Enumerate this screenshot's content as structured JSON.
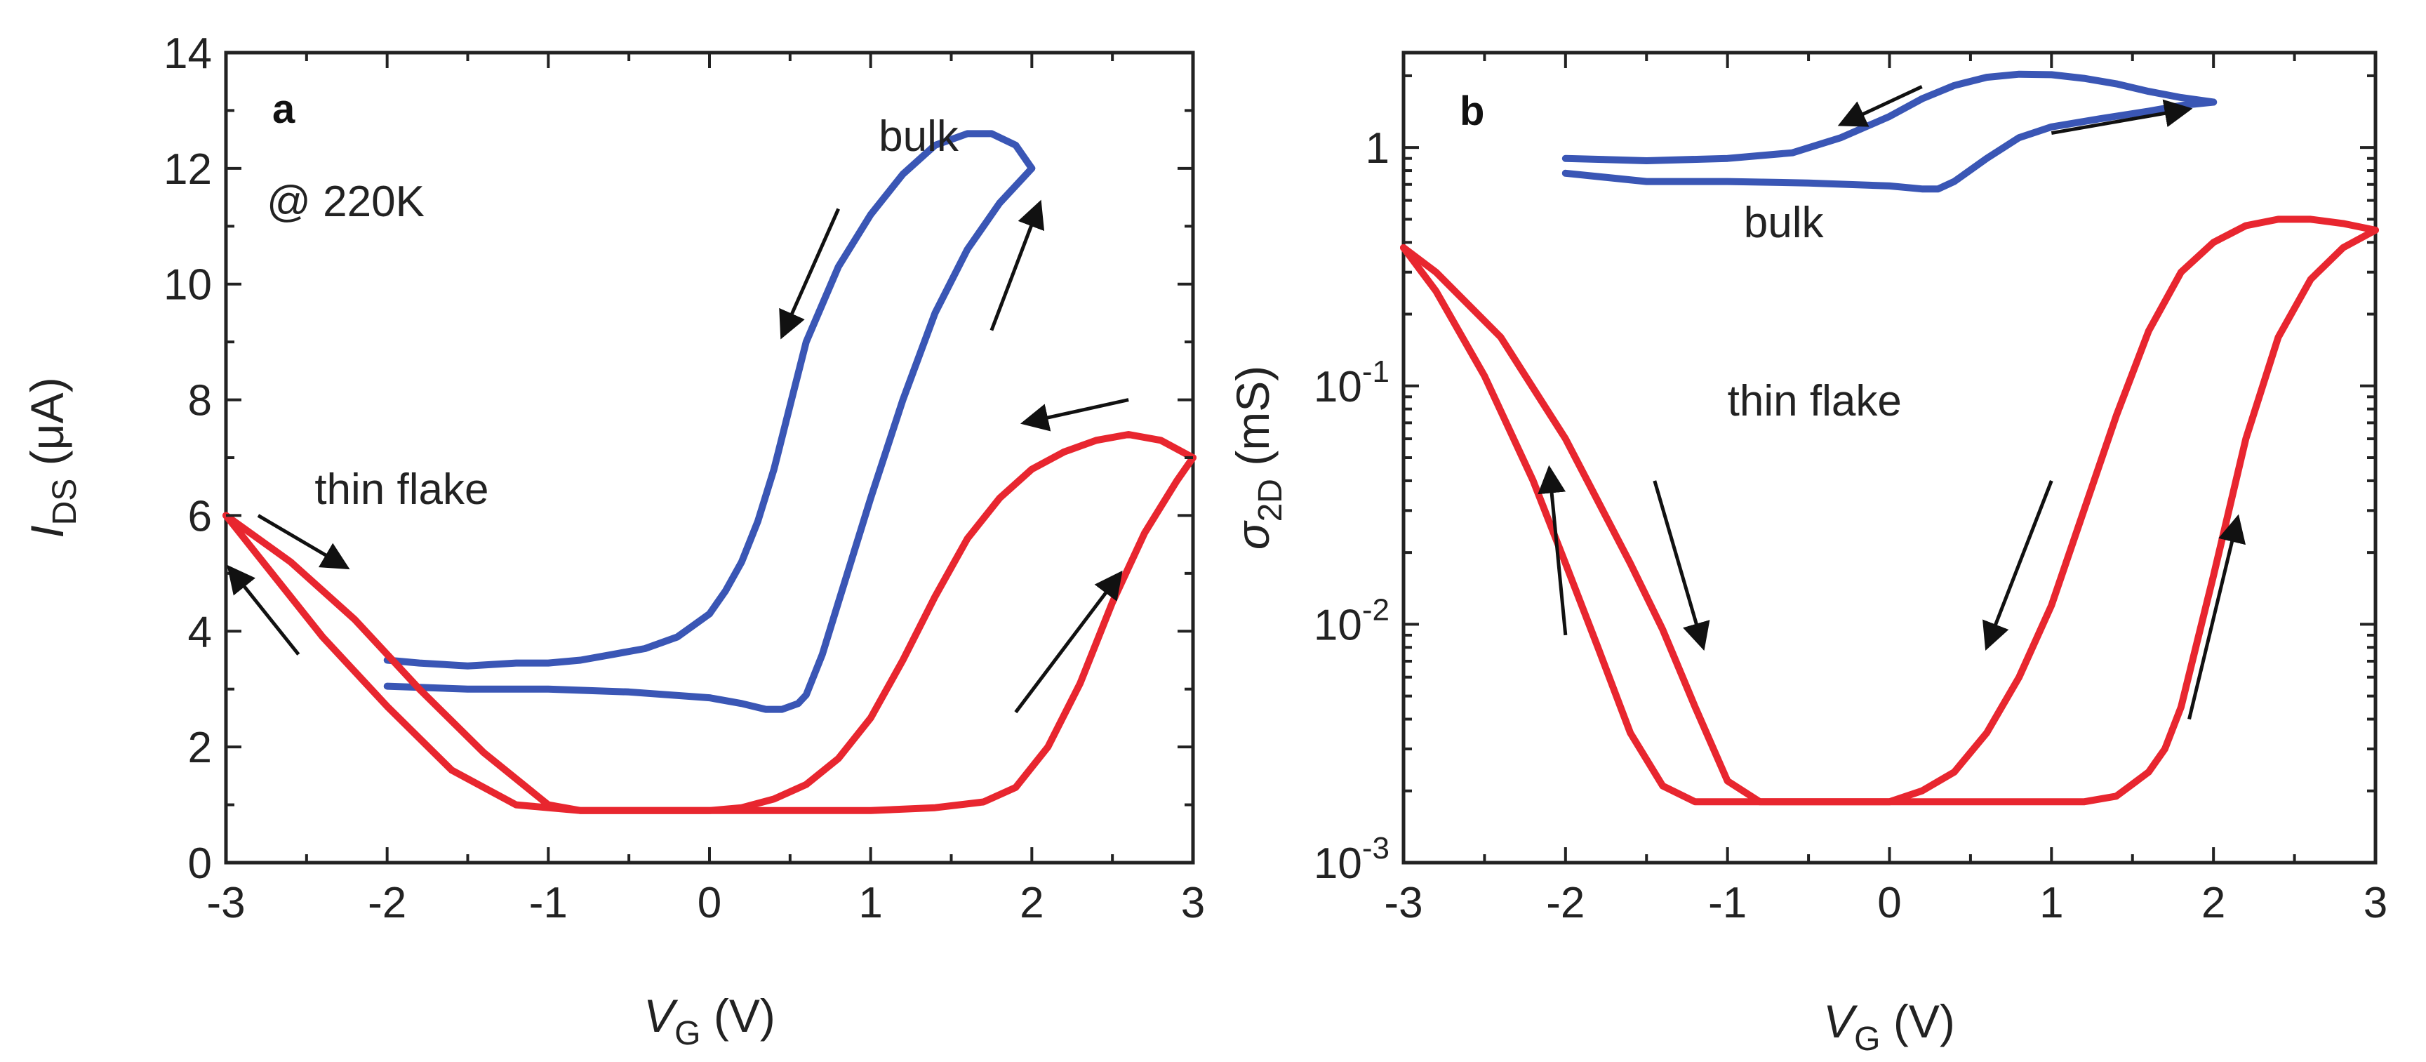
{
  "colors": {
    "bulk": "#3a56b5",
    "thin_flake": "#e8262f",
    "axis": "#222222"
  },
  "chart_data": [
    {
      "type": "line",
      "panel": "a",
      "panel_label": "a",
      "temperature_annotation": "@ 220K",
      "xlabel": {
        "symbol": "V",
        "subscript": "G",
        "unit": " (V)"
      },
      "ylabel": {
        "symbol": "I",
        "subscript": "DS",
        "unit": " (μA)"
      },
      "xlim": [
        -3,
        3
      ],
      "ylim": [
        0,
        14
      ],
      "yscale": "linear",
      "xticks": [
        -3,
        -2,
        -1,
        0,
        1,
        2,
        3
      ],
      "xtick_labels": [
        "-3",
        "-2",
        "-1",
        "0",
        "1",
        "2",
        "3"
      ],
      "yticks": [
        0,
        2,
        4,
        6,
        8,
        10,
        12,
        14
      ],
      "ytick_labels": [
        "0",
        "2",
        "4",
        "6",
        "8",
        "10",
        "12",
        "14"
      ],
      "series": [
        {
          "name": "bulk",
          "label": "bulk",
          "color_key": "bulk",
          "sweep": "backward",
          "x": [
            2.0,
            1.9,
            1.75,
            1.6,
            1.4,
            1.2,
            1.0,
            0.8,
            0.6,
            0.5,
            0.4,
            0.3,
            0.2,
            0.1,
            0.0,
            -0.2,
            -0.4,
            -0.6,
            -0.8,
            -1.0,
            -1.2,
            -1.5,
            -1.8,
            -2.0
          ],
          "y": [
            12.0,
            12.4,
            12.6,
            12.6,
            12.4,
            11.9,
            11.2,
            10.3,
            9.0,
            7.9,
            6.8,
            5.9,
            5.2,
            4.7,
            4.3,
            3.9,
            3.7,
            3.6,
            3.5,
            3.45,
            3.45,
            3.4,
            3.45,
            3.5
          ]
        },
        {
          "name": "bulk",
          "label": "bulk",
          "color_key": "bulk",
          "sweep": "forward",
          "x": [
            -2.0,
            -1.5,
            -1.0,
            -0.5,
            0.0,
            0.2,
            0.35,
            0.45,
            0.55,
            0.6,
            0.7,
            0.8,
            1.0,
            1.2,
            1.4,
            1.6,
            1.8,
            2.0
          ],
          "y": [
            3.05,
            3.0,
            3.0,
            2.95,
            2.85,
            2.75,
            2.65,
            2.65,
            2.75,
            2.9,
            3.6,
            4.5,
            6.3,
            8.0,
            9.5,
            10.6,
            11.4,
            12.0
          ]
        },
        {
          "name": "thin flake",
          "label": "thin flake",
          "color_key": "thin_flake",
          "sweep": "backward",
          "x": [
            3.0,
            2.8,
            2.6,
            2.4,
            2.2,
            2.0,
            1.8,
            1.6,
            1.4,
            1.2,
            1.0,
            0.8,
            0.6,
            0.4,
            0.2,
            0.0,
            -0.4,
            -0.8,
            -1.2,
            -1.6,
            -2.0,
            -2.4,
            -2.8,
            -3.0
          ],
          "y": [
            7.0,
            7.3,
            7.4,
            7.3,
            7.1,
            6.8,
            6.3,
            5.6,
            4.6,
            3.5,
            2.5,
            1.8,
            1.35,
            1.1,
            0.95,
            0.9,
            0.9,
            0.9,
            1.0,
            1.6,
            2.7,
            3.9,
            5.3,
            6.0
          ]
        },
        {
          "name": "thin flake",
          "label": "thin flake",
          "color_key": "thin_flake",
          "sweep": "forward",
          "x": [
            -3.0,
            -2.6,
            -2.2,
            -1.8,
            -1.4,
            -1.0,
            -0.8,
            -0.5,
            0.0,
            0.5,
            1.0,
            1.4,
            1.7,
            1.9,
            2.1,
            2.3,
            2.5,
            2.7,
            2.9,
            3.0
          ],
          "y": [
            6.0,
            5.2,
            4.2,
            3.0,
            1.9,
            1.0,
            0.9,
            0.9,
            0.9,
            0.9,
            0.9,
            0.95,
            1.05,
            1.3,
            2.0,
            3.1,
            4.5,
            5.7,
            6.6,
            7.0
          ]
        }
      ],
      "annotations": [
        {
          "text": "bulk",
          "x": 1.05,
          "y": 12.3
        },
        {
          "text": "thin flake",
          "x": -2.45,
          "y": 6.2
        }
      ],
      "arrows": [
        {
          "from": [
            0.8,
            11.3
          ],
          "to": [
            0.45,
            9.1
          ]
        },
        {
          "from": [
            1.75,
            9.2
          ],
          "to": [
            2.05,
            11.4
          ]
        },
        {
          "from": [
            2.6,
            8.0
          ],
          "to": [
            1.95,
            7.6
          ]
        },
        {
          "from": [
            1.9,
            2.6
          ],
          "to": [
            2.55,
            5.0
          ]
        },
        {
          "from": [
            -2.8,
            6.0
          ],
          "to": [
            -2.25,
            5.1
          ]
        },
        {
          "from": [
            -2.55,
            3.6
          ],
          "to": [
            -2.98,
            5.1
          ]
        }
      ]
    },
    {
      "type": "line",
      "panel": "b",
      "panel_label": "b",
      "xlabel": {
        "symbol": "V",
        "subscript": "G",
        "unit": " (V)"
      },
      "ylabel": {
        "symbol": "σ",
        "subscript": "2D",
        "unit": " (mS)"
      },
      "xlim": [
        -3,
        3
      ],
      "ylim": [
        0.001,
        2.5
      ],
      "yscale": "log",
      "xticks": [
        -3,
        -2,
        -1,
        0,
        1,
        2,
        3
      ],
      "xtick_labels": [
        "-3",
        "-2",
        "-1",
        "0",
        "1",
        "2",
        "3"
      ],
      "yticks": [
        0.001,
        0.01,
        0.1,
        1
      ],
      "ytick_labels": [
        {
          "base": "10",
          "exp": "-3"
        },
        {
          "base": "10",
          "exp": "-2"
        },
        {
          "base": "10",
          "exp": "-1"
        },
        {
          "base": "1",
          "exp": ""
        }
      ],
      "series": [
        {
          "name": "bulk",
          "label": "bulk",
          "color_key": "bulk",
          "sweep": "backward",
          "x": [
            2.0,
            1.8,
            1.6,
            1.4,
            1.2,
            1.0,
            0.8,
            0.6,
            0.4,
            0.2,
            0.0,
            -0.3,
            -0.6,
            -1.0,
            -1.5,
            -2.0
          ],
          "y": [
            1.55,
            1.62,
            1.72,
            1.85,
            1.95,
            2.02,
            2.03,
            1.97,
            1.82,
            1.6,
            1.35,
            1.1,
            0.95,
            0.9,
            0.88,
            0.9
          ]
        },
        {
          "name": "bulk",
          "label": "bulk",
          "color_key": "bulk",
          "sweep": "forward",
          "x": [
            -2.0,
            -1.5,
            -1.0,
            -0.5,
            0.0,
            0.2,
            0.3,
            0.4,
            0.6,
            0.8,
            1.0,
            1.3,
            1.6,
            1.8,
            2.0
          ],
          "y": [
            0.78,
            0.72,
            0.72,
            0.71,
            0.69,
            0.67,
            0.67,
            0.72,
            0.9,
            1.1,
            1.22,
            1.32,
            1.42,
            1.5,
            1.55
          ]
        },
        {
          "name": "thin flake",
          "label": "thin flake",
          "color_key": "thin_flake",
          "sweep": "backward",
          "x": [
            3.0,
            2.8,
            2.6,
            2.4,
            2.2,
            2.0,
            1.8,
            1.6,
            1.4,
            1.2,
            1.0,
            0.8,
            0.6,
            0.4,
            0.2,
            0.0,
            -0.5,
            -0.8,
            -1.0,
            -1.2,
            -1.4,
            -1.6,
            -2.0,
            -2.4,
            -2.8,
            -3.0
          ],
          "y": [
            0.45,
            0.48,
            0.5,
            0.5,
            0.47,
            0.4,
            0.3,
            0.17,
            0.075,
            0.03,
            0.012,
            0.006,
            0.0035,
            0.0024,
            0.002,
            0.0018,
            0.0018,
            0.0018,
            0.0022,
            0.0045,
            0.0095,
            0.018,
            0.06,
            0.16,
            0.3,
            0.38
          ]
        },
        {
          "name": "thin flake",
          "label": "thin flake",
          "color_key": "thin_flake",
          "sweep": "forward",
          "x": [
            -3.0,
            -2.8,
            -2.5,
            -2.2,
            -2.0,
            -1.8,
            -1.6,
            -1.4,
            -1.2,
            -1.0,
            -0.8,
            -0.5,
            0.0,
            0.5,
            1.0,
            1.2,
            1.4,
            1.6,
            1.7,
            1.8,
            1.9,
            2.0,
            2.2,
            2.4,
            2.6,
            2.8,
            3.0
          ],
          "y": [
            0.38,
            0.25,
            0.11,
            0.04,
            0.018,
            0.008,
            0.0035,
            0.0021,
            0.0018,
            0.0018,
            0.0018,
            0.0018,
            0.0018,
            0.0018,
            0.0018,
            0.0018,
            0.0019,
            0.0024,
            0.003,
            0.0045,
            0.0085,
            0.016,
            0.06,
            0.16,
            0.28,
            0.38,
            0.45
          ]
        }
      ],
      "annotations": [
        {
          "text": "bulk",
          "x": -0.9,
          "y": 0.42
        },
        {
          "text": "thin flake",
          "x": -1.0,
          "y": 0.075
        }
      ],
      "arrows": [
        {
          "from": [
            0.2,
            1.8
          ],
          "to": [
            -0.3,
            1.25
          ]
        },
        {
          "from": [
            1.0,
            1.15
          ],
          "to": [
            1.85,
            1.45
          ]
        },
        {
          "from": [
            -2.0,
            0.009
          ],
          "to": [
            -2.1,
            0.045
          ]
        },
        {
          "from": [
            -1.45,
            0.04
          ],
          "to": [
            -1.15,
            0.008
          ]
        },
        {
          "from": [
            1.0,
            0.04
          ],
          "to": [
            0.6,
            0.008
          ]
        },
        {
          "from": [
            1.85,
            0.004
          ],
          "to": [
            2.15,
            0.028
          ]
        }
      ]
    }
  ]
}
